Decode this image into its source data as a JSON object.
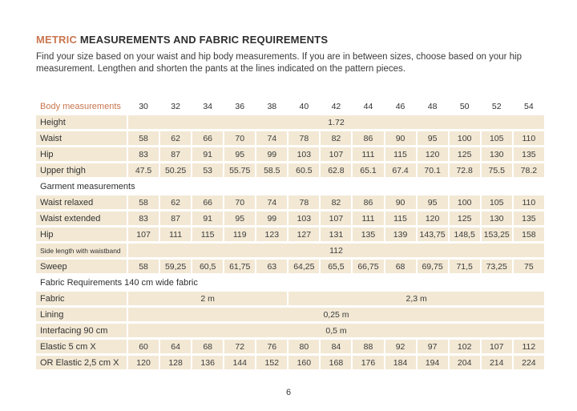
{
  "page": {
    "title_accent": "METRIC",
    "title_rest": " MEASUREMENTS AND FABRIC REQUIREMENTS",
    "intro_line1": "Find your size based on your waist and hip body measurements. If you are in between sizes, choose based on your hip",
    "intro_line2": "measurement. Lengthen and shorten the pants at the lines indicated on the pattern pieces.",
    "page_number": "6"
  },
  "colors": {
    "accent_orange": "#c9764f",
    "cell_beige": "#f2e8d4",
    "text_dark": "#2f2f2f"
  },
  "table": {
    "header_label": "Body measurements",
    "sizes": [
      "30",
      "32",
      "34",
      "36",
      "38",
      "40",
      "42",
      "44",
      "46",
      "48",
      "50",
      "52",
      "54"
    ],
    "rows": [
      {
        "type": "span-all",
        "label": "Height",
        "value": "1.72"
      },
      {
        "type": "values",
        "label": "Waist",
        "values": [
          "58",
          "62",
          "66",
          "70",
          "74",
          "78",
          "82",
          "86",
          "90",
          "95",
          "100",
          "105",
          "110"
        ]
      },
      {
        "type": "values",
        "label": "Hip",
        "values": [
          "83",
          "87",
          "91",
          "95",
          "99",
          "103",
          "107",
          "111",
          "115",
          "120",
          "125",
          "130",
          "135"
        ]
      },
      {
        "type": "values",
        "label": "Upper thigh",
        "values": [
          "47.5",
          "50.25",
          "53",
          "55.75",
          "58.5",
          "60.5",
          "62.8",
          "65.1",
          "67.4",
          "70.1",
          "72.8",
          "75.5",
          "78.2"
        ]
      },
      {
        "type": "section",
        "label": "Garment measurements"
      },
      {
        "type": "values",
        "label": "Waist relaxed",
        "values": [
          "58",
          "62",
          "66",
          "70",
          "74",
          "78",
          "82",
          "86",
          "90",
          "95",
          "100",
          "105",
          "110"
        ]
      },
      {
        "type": "values",
        "label": "Waist extended",
        "values": [
          "83",
          "87",
          "91",
          "95",
          "99",
          "103",
          "107",
          "111",
          "115",
          "120",
          "125",
          "130",
          "135"
        ]
      },
      {
        "type": "values",
        "label": "Hip",
        "values": [
          "107",
          "111",
          "115",
          "119",
          "123",
          "127",
          "131",
          "135",
          "139",
          "143,75",
          "148,5",
          "153,25",
          "158"
        ]
      },
      {
        "type": "span-all",
        "label": "Side length with waistband",
        "small_label": true,
        "value": "112"
      },
      {
        "type": "values",
        "label": "Sweep",
        "values": [
          "58",
          "59,25",
          "60,5",
          "61,75",
          "63",
          "64,25",
          "65,5",
          "66,75",
          "68",
          "69,75",
          "71,5",
          "73,25",
          "75"
        ]
      },
      {
        "type": "section",
        "label": "Fabric Requirements 140 cm wide fabric"
      },
      {
        "type": "spans",
        "label": "Fabric",
        "spans": [
          {
            "value": "2 m",
            "cols": 5
          },
          {
            "value": "2,3 m",
            "cols": 8
          }
        ]
      },
      {
        "type": "span-all",
        "label": "Lining",
        "value": "0,25 m"
      },
      {
        "type": "span-all",
        "label": "Interfacing 90 cm",
        "value": "0,5 m"
      },
      {
        "type": "values",
        "label": "Elastic 5 cm X",
        "values": [
          "60",
          "64",
          "68",
          "72",
          "76",
          "80",
          "84",
          "88",
          "92",
          "97",
          "102",
          "107",
          "112"
        ]
      },
      {
        "type": "values",
        "label": "OR Elastic 2,5 cm X",
        "values": [
          "120",
          "128",
          "136",
          "144",
          "152",
          "160",
          "168",
          "176",
          "184",
          "194",
          "204",
          "214",
          "224"
        ]
      }
    ]
  }
}
